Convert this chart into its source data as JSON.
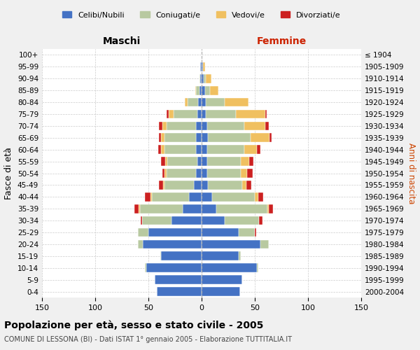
{
  "age_groups": [
    "0-4",
    "5-9",
    "10-14",
    "15-19",
    "20-24",
    "25-29",
    "30-34",
    "35-39",
    "40-44",
    "45-49",
    "50-54",
    "55-59",
    "60-64",
    "65-69",
    "70-74",
    "75-79",
    "80-84",
    "85-89",
    "90-94",
    "95-99",
    "100+"
  ],
  "birth_years": [
    "2000-2004",
    "1995-1999",
    "1990-1994",
    "1985-1989",
    "1980-1984",
    "1975-1979",
    "1970-1974",
    "1965-1969",
    "1960-1964",
    "1955-1959",
    "1950-1954",
    "1945-1949",
    "1940-1944",
    "1935-1939",
    "1930-1934",
    "1925-1929",
    "1920-1924",
    "1915-1919",
    "1910-1914",
    "1905-1909",
    "≤ 1904"
  ],
  "colors": {
    "celibi": "#4472c4",
    "coniugati": "#b8c9a0",
    "vedovi": "#f0c060",
    "divorziati": "#cc2020"
  },
  "maschi": {
    "celibi": [
      42,
      44,
      52,
      38,
      55,
      50,
      28,
      18,
      12,
      7,
      5,
      4,
      5,
      5,
      5,
      4,
      3,
      2,
      1,
      1,
      0
    ],
    "coniugati": [
      0,
      0,
      1,
      1,
      5,
      10,
      28,
      40,
      35,
      28,
      28,
      28,
      30,
      30,
      28,
      22,
      10,
      3,
      1,
      0,
      0
    ],
    "vedovi": [
      0,
      0,
      0,
      0,
      0,
      0,
      0,
      1,
      1,
      1,
      2,
      2,
      3,
      3,
      4,
      5,
      3,
      1,
      0,
      0,
      0
    ],
    "divorziati": [
      0,
      0,
      0,
      0,
      0,
      0,
      1,
      4,
      5,
      4,
      2,
      4,
      3,
      2,
      3,
      2,
      0,
      0,
      0,
      0,
      0
    ]
  },
  "femmine": {
    "celibi": [
      36,
      38,
      52,
      35,
      55,
      35,
      22,
      14,
      10,
      6,
      5,
      5,
      5,
      6,
      5,
      4,
      4,
      3,
      2,
      1,
      0
    ],
    "coniugati": [
      0,
      0,
      1,
      2,
      8,
      15,
      32,
      48,
      40,
      32,
      32,
      32,
      35,
      40,
      35,
      28,
      18,
      5,
      2,
      0,
      0
    ],
    "vedovi": [
      0,
      0,
      0,
      0,
      0,
      0,
      0,
      1,
      3,
      4,
      6,
      8,
      12,
      18,
      20,
      28,
      22,
      8,
      5,
      2,
      0
    ],
    "divorziati": [
      0,
      0,
      0,
      0,
      0,
      1,
      3,
      4,
      5,
      5,
      5,
      4,
      3,
      2,
      3,
      1,
      0,
      0,
      0,
      0,
      0
    ]
  },
  "xlim": 150,
  "title": "Popolazione per età, sesso e stato civile - 2005",
  "subtitle": "COMUNE DI LESSONA (BI) - Dati ISTAT 1° gennaio 2005 - Elaborazione TUTTITALIA.IT",
  "ylabel_left": "Fasce di età",
  "ylabel_right": "Anni di nascita",
  "header_left": "Maschi",
  "header_right": "Femmine",
  "legend_labels": [
    "Celibi/Nubili",
    "Coniugati/e",
    "Vedovi/e",
    "Divorziati/e"
  ],
  "bg_color": "#f0f0f0",
  "plot_bg": "#ffffff"
}
